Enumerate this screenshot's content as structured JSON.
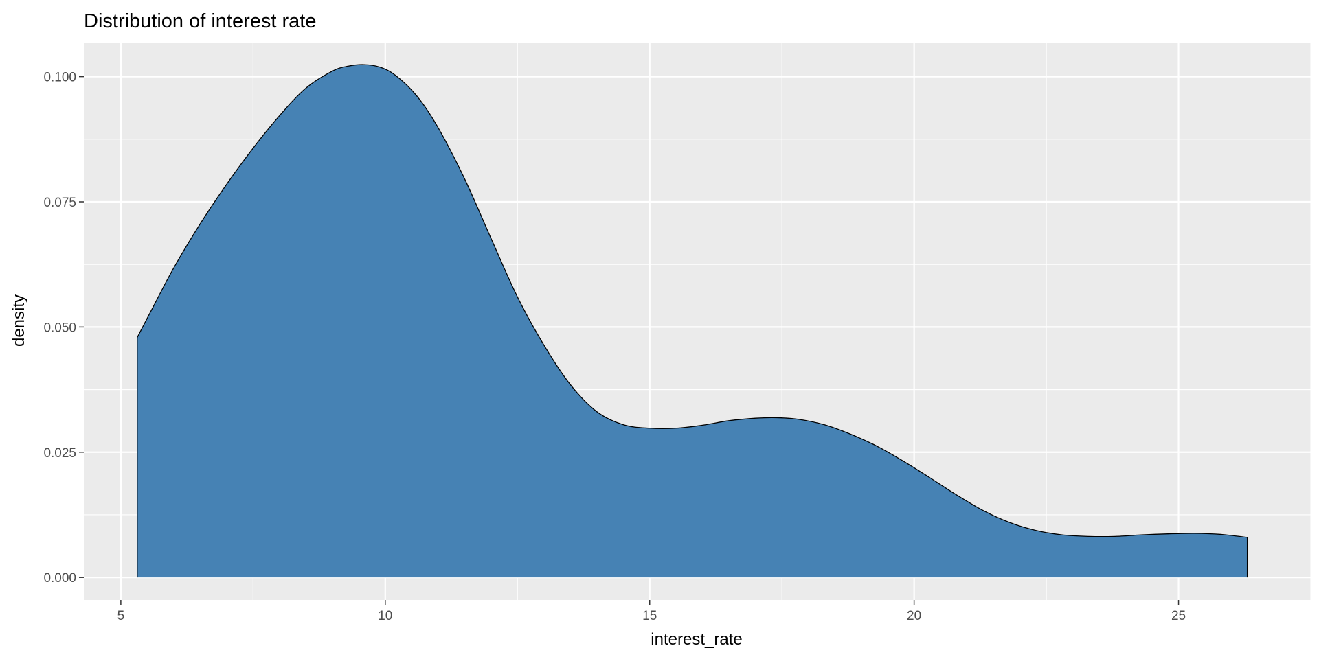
{
  "chart_data": {
    "type": "area",
    "title": "Distribution of interest rate",
    "xlabel": "interest_rate",
    "ylabel": "density",
    "xlim": [
      4.3,
      27.5
    ],
    "ylim": [
      -0.0045,
      0.1068
    ],
    "x_ticks": [
      5,
      10,
      15,
      20,
      25
    ],
    "x_tick_labels": [
      "5",
      "10",
      "15",
      "20",
      "25"
    ],
    "y_ticks": [
      0.0,
      0.025,
      0.05,
      0.075,
      0.1
    ],
    "y_tick_labels": [
      "0.000",
      "0.025",
      "0.050",
      "0.075",
      "0.100"
    ],
    "grid": true,
    "legend": "none",
    "fill_color": "#4682b4",
    "line_color": "#000000",
    "panel_background": "#ebebeb",
    "grid_color": "#ffffff",
    "series": [
      {
        "x": [
          5.31,
          5.6,
          6.0,
          6.5,
          7.0,
          7.5,
          8.0,
          8.5,
          9.0,
          9.3,
          9.6,
          9.9,
          10.2,
          10.6,
          11.0,
          11.5,
          12.0,
          12.5,
          13.0,
          13.5,
          14.0,
          14.5,
          15.0,
          15.5,
          16.0,
          16.5,
          17.0,
          17.4,
          17.8,
          18.3,
          18.8,
          19.3,
          19.8,
          20.3,
          20.8,
          21.3,
          21.8,
          22.3,
          22.8,
          23.3,
          23.8,
          24.3,
          24.8,
          25.3,
          25.8,
          26.3
        ],
        "y": [
          0.0479,
          0.0538,
          0.0618,
          0.0706,
          0.0785,
          0.0857,
          0.0922,
          0.0977,
          0.1011,
          0.1021,
          0.1024,
          0.1019,
          0.1002,
          0.0961,
          0.0898,
          0.0796,
          0.0677,
          0.056,
          0.0464,
          0.0385,
          0.0331,
          0.0305,
          0.0298,
          0.0298,
          0.0304,
          0.0313,
          0.0318,
          0.0319,
          0.0316,
          0.0305,
          0.0286,
          0.0262,
          0.0232,
          0.0199,
          0.0165,
          0.0134,
          0.011,
          0.0094,
          0.0085,
          0.0082,
          0.0082,
          0.0085,
          0.0087,
          0.0088,
          0.0086,
          0.008
        ]
      }
    ]
  }
}
